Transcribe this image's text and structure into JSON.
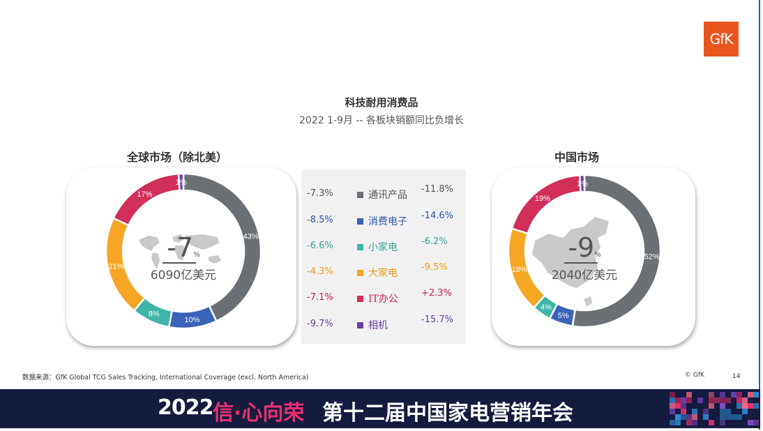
{
  "header": {
    "logo_text": "GfK",
    "title": "科技耐用消费品",
    "subtitle": "2022 1-9月 -- 各板块销额同比负增长"
  },
  "global": {
    "title": "全球市场（除北美）",
    "growth_value": "-7",
    "growth_unit": "%",
    "total": "6090亿美元"
  },
  "china": {
    "title": "中国市场",
    "growth_value": "-9",
    "growth_unit": "%",
    "total": "2040亿美元"
  },
  "legend": {
    "colors": [
      "#6b7075",
      "#3a62b8",
      "#3fb5a8",
      "#f5a623",
      "#d22e5a",
      "#6a3ea6"
    ],
    "rows": [
      {
        "name": "通讯产品",
        "global": "-7.3%",
        "china": "-11.8%",
        "color": "#6b7075",
        "text_color": "#555555"
      },
      {
        "name": "消费电子",
        "global": "-8.5%",
        "china": "-14.6%",
        "color": "#3a62b8",
        "text_color": "#2f55a8"
      },
      {
        "name": "小家电",
        "global": "-6.6%",
        "china": "-6.2%",
        "color": "#3fb5a8",
        "text_color": "#35a597"
      },
      {
        "name": "大家电",
        "global": "-4.3%",
        "china": "-9.5%",
        "color": "#f5a623",
        "text_color": "#ef9a14"
      },
      {
        "name": "IT办公",
        "global": "-7.1%",
        "china": "+2.3%",
        "color": "#d22e5a",
        "text_color": "#c8234f"
      },
      {
        "name": "相机",
        "global": "-9.7%",
        "china": "-15.7%",
        "color": "#6a3ea6",
        "text_color": "#6a3ea6"
      }
    ]
  },
  "chart_data": [
    {
      "type": "pie",
      "title": "全球市场（除北美）",
      "categories": [
        "通讯产品",
        "消费电子",
        "小家电",
        "大家电",
        "IT办公",
        "相机"
      ],
      "values": [
        43,
        10,
        8,
        21,
        17,
        1
      ],
      "labels": [
        "43%",
        "10%",
        "8%",
        "21%",
        "17%",
        "1%"
      ],
      "colors": [
        "#6b7075",
        "#3a62b8",
        "#3fb5a8",
        "#f5a623",
        "#d22e5a",
        "#6a3ea6"
      ]
    },
    {
      "type": "pie",
      "title": "中国市场",
      "categories": [
        "通讯产品",
        "消费电子",
        "小家电",
        "大家电",
        "IT办公",
        "相机"
      ],
      "values": [
        52,
        5,
        4,
        18,
        19,
        1
      ],
      "labels": [
        "52%",
        "5%",
        "4%",
        "18%",
        "19%",
        "1%"
      ],
      "colors": [
        "#6b7075",
        "#3a62b8",
        "#3fb5a8",
        "#f5a623",
        "#d22e5a",
        "#6a3ea6"
      ]
    }
  ],
  "footer": {
    "source": "数据来源：GfK Global TCG  Sales Tracking, International Coverage (excl. North America)",
    "copyright": "© GfK",
    "page_number": "14",
    "year": "2022",
    "slogan": "信·心向荣",
    "event": "第十二届中国家电营销年会"
  }
}
